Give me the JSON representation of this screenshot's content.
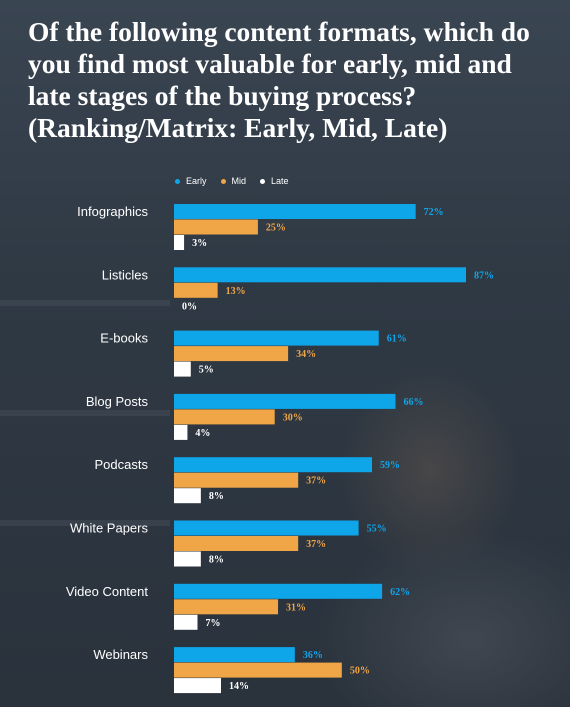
{
  "header": {
    "title": "Of the following content formats, which do you find most valuable for early, mid and late stages of the buying process? (Ranking/Matrix: Early, Mid, Late)"
  },
  "colors": {
    "early": "#0ea5e9",
    "mid": "#f0a646",
    "late": "#ffffff",
    "label_text": "#ffffff",
    "value_early": "#0ea5e9",
    "value_mid": "#f0a646",
    "value_late": "#ffffff"
  },
  "chart_data": {
    "type": "bar",
    "orientation": "horizontal",
    "title": "Of the following content formats, which do you find most valuable for early, mid and late stages of the buying process? (Ranking/Matrix: Early, Mid, Late)",
    "categories": [
      "Infographics",
      "Listicles",
      "E-books",
      "Blog Posts",
      "Podcasts",
      "White Papers",
      "Video Content",
      "Webinars"
    ],
    "series": [
      {
        "name": "Early",
        "values": [
          72,
          87,
          61,
          66,
          59,
          55,
          62,
          36
        ],
        "labels": [
          "72%",
          "87%",
          "61%",
          "66%",
          "59%",
          "55%",
          "62%",
          "36%"
        ]
      },
      {
        "name": "Mid",
        "values": [
          25,
          13,
          34,
          30,
          37,
          37,
          31,
          50
        ],
        "labels": [
          "25%",
          "13%",
          "34%",
          "30%",
          "37%",
          "37%",
          "31%",
          "50%"
        ]
      },
      {
        "name": "Late",
        "values": [
          3,
          0,
          5,
          4,
          8,
          8,
          7,
          14
        ],
        "labels": [
          "3%",
          "0%",
          "5%",
          "4%",
          "8%",
          "8%",
          "7%",
          "14%"
        ]
      }
    ],
    "xlim": [
      0,
      100
    ],
    "legend_position": "top",
    "grid": false,
    "data_labels": true
  }
}
